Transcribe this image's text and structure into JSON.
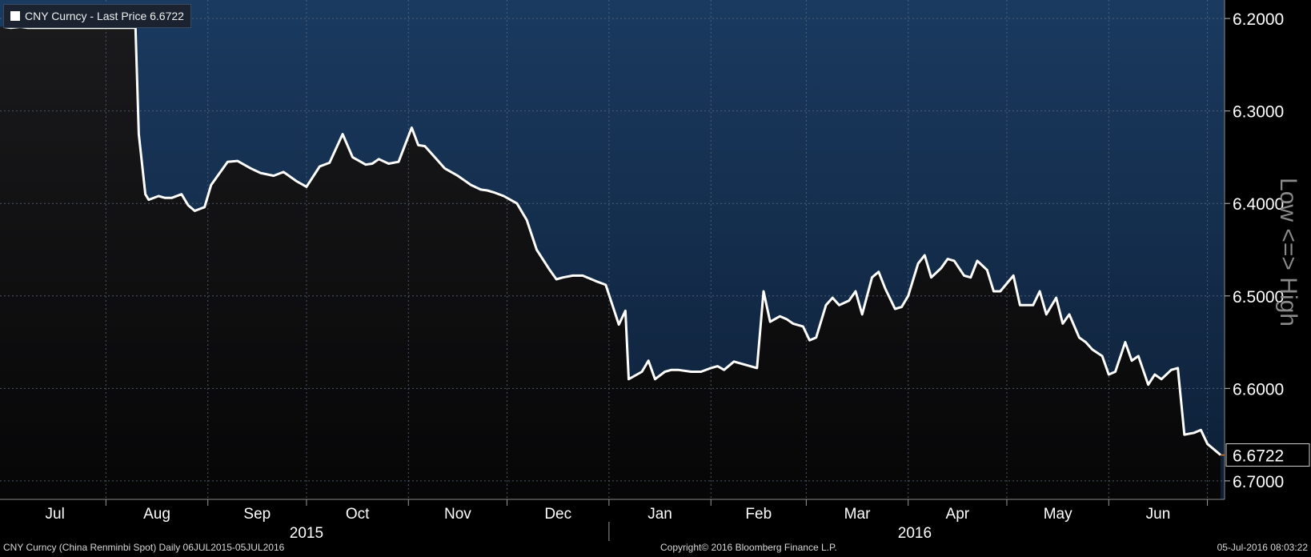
{
  "legend": {
    "label": "CNY Curncy - Last Price 6.6722",
    "swatch_color": "#ffffff"
  },
  "side_label": "Low <=> High",
  "last_price_label": "6.6722",
  "footer": {
    "left": "CNY Curncy (China Renminbi Spot)  Daily 06JUL2015-05JUL2016",
    "center": "Copyright© 2016 Bloomberg Finance L.P.",
    "right": "05-Jul-2016 08:03:22"
  },
  "colors": {
    "background": "#000000",
    "fill_top": "#1a3a60",
    "fill_bottom": "#0d1f36",
    "area_below": "#0c0c0e",
    "line": "#ffffff",
    "last_marker": "#e07b2b"
  },
  "chart_data": {
    "type": "line",
    "title": "",
    "xlabel": "",
    "ylabel": "",
    "ylim": [
      6.18,
      6.72
    ],
    "y_axis_inverted": true,
    "y_ticks": [
      "6.2000",
      "6.3000",
      "6.4000",
      "6.5000",
      "6.6000",
      "6.7000"
    ],
    "x_month_labels": [
      "Jul",
      "Aug",
      "Sep",
      "Oct",
      "Nov",
      "Dec",
      "Jan",
      "Feb",
      "Mar",
      "Apr",
      "May",
      "Jun"
    ],
    "x_year_labels": [
      "2015",
      "2016"
    ],
    "grid": true,
    "legend_position": "top-left",
    "series": [
      {
        "name": "CNY Curncy - Last Price",
        "x": [
          "2015-07-01",
          "2015-07-03",
          "2015-07-06",
          "2015-07-08",
          "2015-07-10",
          "2015-07-13",
          "2015-07-16",
          "2015-07-20",
          "2015-07-24",
          "2015-07-28",
          "2015-08-03",
          "2015-08-05",
          "2015-08-10",
          "2015-08-11",
          "2015-08-13",
          "2015-08-14",
          "2015-08-17",
          "2015-08-19",
          "2015-08-21",
          "2015-08-24",
          "2015-08-26",
          "2015-08-28",
          "2015-08-31",
          "2015-09-02",
          "2015-09-04",
          "2015-09-07",
          "2015-09-10",
          "2015-09-14",
          "2015-09-17",
          "2015-09-21",
          "2015-09-24",
          "2015-09-28",
          "2015-10-01",
          "2015-10-05",
          "2015-10-08",
          "2015-10-12",
          "2015-10-15",
          "2015-10-19",
          "2015-10-21",
          "2015-10-23",
          "2015-10-26",
          "2015-10-29",
          "2015-11-02",
          "2015-11-04",
          "2015-11-06",
          "2015-11-09",
          "2015-11-12",
          "2015-11-16",
          "2015-11-18",
          "2015-11-20",
          "2015-11-23",
          "2015-11-25",
          "2015-11-27",
          "2015-11-30",
          "2015-12-02",
          "2015-12-04",
          "2015-12-07",
          "2015-12-10",
          "2015-12-14",
          "2015-12-16",
          "2015-12-18",
          "2015-12-21",
          "2015-12-24",
          "2015-12-28",
          "2015-12-31",
          "2016-01-04",
          "2016-01-06",
          "2016-01-07",
          "2016-01-11",
          "2016-01-13",
          "2016-01-15",
          "2016-01-18",
          "2016-01-20",
          "2016-01-22",
          "2016-01-26",
          "2016-01-29",
          "2016-02-01",
          "2016-02-03",
          "2016-02-05",
          "2016-02-08",
          "2016-02-15",
          "2016-02-17",
          "2016-02-19",
          "2016-02-22",
          "2016-02-24",
          "2016-02-26",
          "2016-02-29",
          "2016-03-02",
          "2016-03-04",
          "2016-03-07",
          "2016-03-09",
          "2016-03-11",
          "2016-03-14",
          "2016-03-16",
          "2016-03-18",
          "2016-03-21",
          "2016-03-23",
          "2016-03-25",
          "2016-03-28",
          "2016-03-30",
          "2016-04-01",
          "2016-04-04",
          "2016-04-06",
          "2016-04-08",
          "2016-04-11",
          "2016-04-13",
          "2016-04-15",
          "2016-04-18",
          "2016-04-20",
          "2016-04-22",
          "2016-04-25",
          "2016-04-27",
          "2016-04-29",
          "2016-05-03",
          "2016-05-05",
          "2016-05-09",
          "2016-05-11",
          "2016-05-13",
          "2016-05-16",
          "2016-05-18",
          "2016-05-20",
          "2016-05-23",
          "2016-05-25",
          "2016-05-27",
          "2016-05-30",
          "2016-06-01",
          "2016-06-03",
          "2016-06-06",
          "2016-06-08",
          "2016-06-10",
          "2016-06-13",
          "2016-06-15",
          "2016-06-17",
          "2016-06-20",
          "2016-06-22",
          "2016-06-24",
          "2016-06-27",
          "2016-06-29",
          "2016-07-01",
          "2016-07-05"
        ],
        "y": [
          6.209,
          6.21,
          6.209,
          6.21,
          6.21,
          6.21,
          6.21,
          6.21,
          6.21,
          6.21,
          6.21,
          6.21,
          6.21,
          6.325,
          6.39,
          6.396,
          6.392,
          6.394,
          6.394,
          6.39,
          6.402,
          6.408,
          6.404,
          6.38,
          6.37,
          6.355,
          6.354,
          6.362,
          6.367,
          6.37,
          6.366,
          6.376,
          6.382,
          6.36,
          6.356,
          6.325,
          6.35,
          6.358,
          6.357,
          6.352,
          6.357,
          6.355,
          6.318,
          6.337,
          6.338,
          6.35,
          6.362,
          6.37,
          6.375,
          6.38,
          6.385,
          6.386,
          6.388,
          6.392,
          6.396,
          6.4,
          6.418,
          6.45,
          6.472,
          6.482,
          6.48,
          6.478,
          6.478,
          6.484,
          6.488,
          6.531,
          6.516,
          6.59,
          6.582,
          6.57,
          6.59,
          6.582,
          6.58,
          6.58,
          6.582,
          6.582,
          6.578,
          6.576,
          6.58,
          6.571,
          6.578,
          6.495,
          6.528,
          6.522,
          6.525,
          6.53,
          6.533,
          6.548,
          6.545,
          6.51,
          6.502,
          6.51,
          6.505,
          6.495,
          6.52,
          6.48,
          6.474,
          6.492,
          6.514,
          6.512,
          6.5,
          6.465,
          6.456,
          6.48,
          6.47,
          6.46,
          6.462,
          6.478,
          6.48,
          6.462,
          6.472,
          6.495,
          6.495,
          6.478,
          6.51,
          6.51,
          6.495,
          6.52,
          6.502,
          6.53,
          6.52,
          6.545,
          6.55,
          6.558,
          6.565,
          6.585,
          6.582,
          6.55,
          6.57,
          6.565,
          6.596,
          6.585,
          6.59,
          6.58,
          6.578,
          6.65,
          6.648,
          6.645,
          6.66,
          6.672
        ]
      }
    ]
  }
}
